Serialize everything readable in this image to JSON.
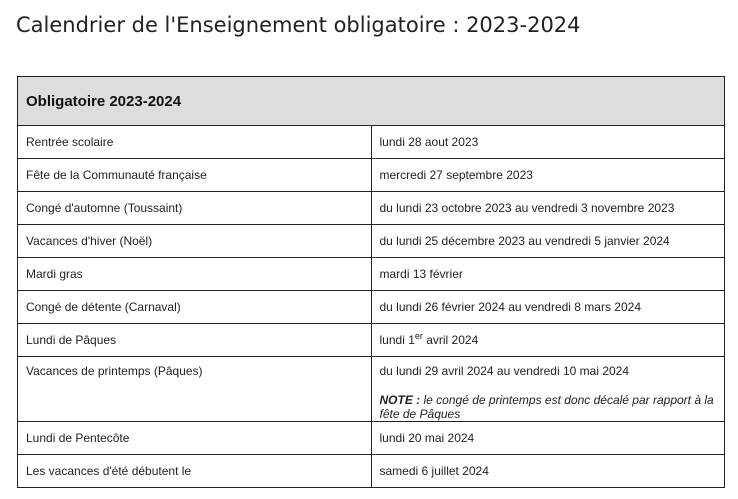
{
  "title": "Calendrier de l'Enseignement obligatoire : 2023-2024",
  "table": {
    "header": "Obligatoire 2023-2024",
    "rows": [
      {
        "event": "Rentrée scolaire",
        "date": "lundi 28 aout 2023"
      },
      {
        "event": "Fête de la Communauté française",
        "date": "mercredi 27 septembre 2023"
      },
      {
        "event": "Congé d'automne (Toussaint)",
        "date": "du lundi 23 octobre 2023 au vendredi 3 novembre 2023"
      },
      {
        "event": "Vacances d'hiver (Noël)",
        "date": "du lundi 25 décembre 2023 au vendredi 5 janvier 2024"
      },
      {
        "event": "Mardi gras",
        "date": "mardi 13 février"
      },
      {
        "event": "Congé de détente (Carnaval)",
        "date": "du lundi 26 février 2024 au vendredi 8 mars 2024"
      },
      {
        "event": "Lundi de Pâques",
        "date_prefix": "lundi 1",
        "date_sup": "er",
        "date_suffix": " avril 2024"
      },
      {
        "event": "Vacances de printemps (Pâques)",
        "date": "du lundi 29 avril 2024 au vendredi 10 mai 2024",
        "note_label": "NOTE :",
        "note_text": " le congé de printemps est donc décalé par rapport à la fête de Pâques"
      },
      {
        "event": "Lundi de Pentecôte",
        "date": "lundi 20 mai 2024"
      },
      {
        "event": "Les vacances d'été débutent le",
        "date": "samedi 6 juillet 2024"
      }
    ]
  }
}
